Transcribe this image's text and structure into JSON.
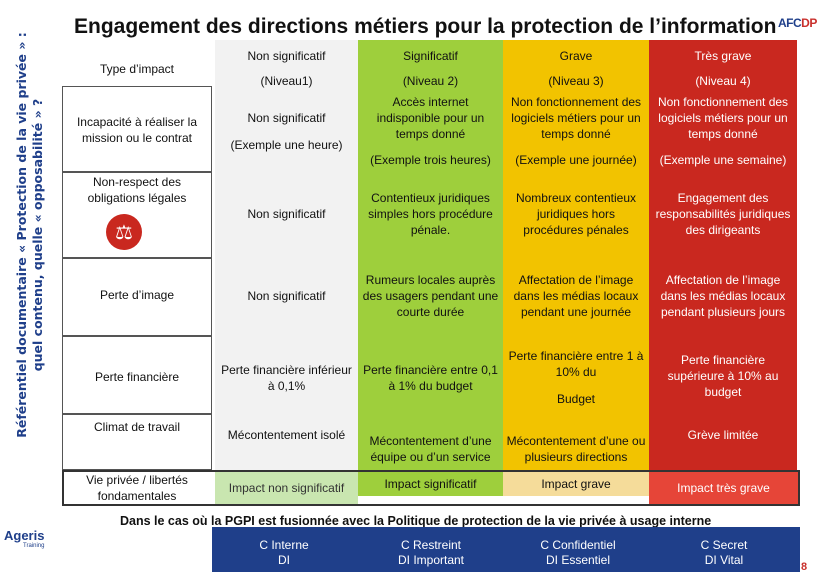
{
  "title": "Engagement des directions métiers pour la protection de l’information",
  "side_title": {
    "line1": "Référentiel documentaire « Protection de la vie privée » :",
    "line2": "quel contenu, quelle « opposabilité » ?"
  },
  "logo_text_main": "AFC",
  "logo_text_accent": "DP",
  "ageris": {
    "name": "Ageris",
    "sub": "Training"
  },
  "columns": [
    {
      "name": "Non significatif",
      "level": "(Niveau1)"
    },
    {
      "name": "Significatif",
      "level": "(Niveau 2)"
    },
    {
      "name": "Grave",
      "level": "(Niveau 3)"
    },
    {
      "name": "Très grave",
      "level": "(Niveau 4)"
    }
  ],
  "type_header": "Type d’impact",
  "rows": [
    {
      "label": "Incapacité à réaliser la mission ou le contrat",
      "cells": [
        "Non significatif",
        "Accès internet indisponible pour un temps donné",
        "Non fonctionnement des logiciels métiers pour un temps donné",
        "Non fonctionnement des logiciels métiers pour un temps donné"
      ],
      "examples": [
        "(Exemple une heure)",
        "(Exemple trois heures)",
        "(Exemple une journée)",
        "(Exemple une semaine)"
      ]
    },
    {
      "label": "Non-respect des obligations légales",
      "icon": "scales-icon",
      "cells": [
        "Non significatif",
        "Contentieux juridiques simples hors procédure pénale.",
        "Nombreux contentieux juridiques hors procédures pénales",
        "Engagement des responsabilités juridiques des dirigeants"
      ]
    },
    {
      "label": "Perte d’image",
      "cells": [
        "Non significatif",
        "Rumeurs locales auprès des usagers pendant une courte durée",
        "Affectation de l’image dans les médias locaux pendant une journée",
        "Affectation de l’image dans les médias locaux pendant plusieurs jours"
      ]
    },
    {
      "label": "Perte financière",
      "cells": [
        "Perte financière inférieur à 0,1%",
        "Perte financière entre 0,1 à 1% du budget",
        "Perte financière entre 1 à 10% du",
        "Perte financière supérieure à 10% au budget"
      ],
      "extra_grave": "Budget"
    },
    {
      "label": "Climat de travail",
      "cells": [
        "Mécontentement isolé",
        "Mécontentement d’une équipe ou d’un service",
        "Mécontentement d’une ou plusieurs directions",
        "Grève limitée"
      ]
    },
    {
      "label": "Vie privée / libertés fondamentales",
      "cells": [
        "Impact non significatif",
        "Impact significatif",
        "Impact grave",
        "Impact très grave"
      ]
    }
  ],
  "note": "Dans le cas où la PGPI est fusionnée avec la Politique de protection de la vie privée à usage interne",
  "legend": [
    {
      "line1": "C Interne",
      "line2": "DI"
    },
    {
      "line1": "C Restreint",
      "line2": "DI Important"
    },
    {
      "line1": "C Confidentiel",
      "line2": "DI Essentiel"
    },
    {
      "line1": "C Secret",
      "line2": "DI Vital"
    }
  ],
  "page_number": "8",
  "colors": {
    "col1": "#f2f2f2",
    "col2": "#9ecf3c",
    "col3": "#f2c300",
    "col4": "#c9281f",
    "bottom_col1": "#c9e6b0",
    "bottom_col3": "#f5dc9a",
    "bottom_col4": "#e64538",
    "legend": "#1f3f8a"
  }
}
